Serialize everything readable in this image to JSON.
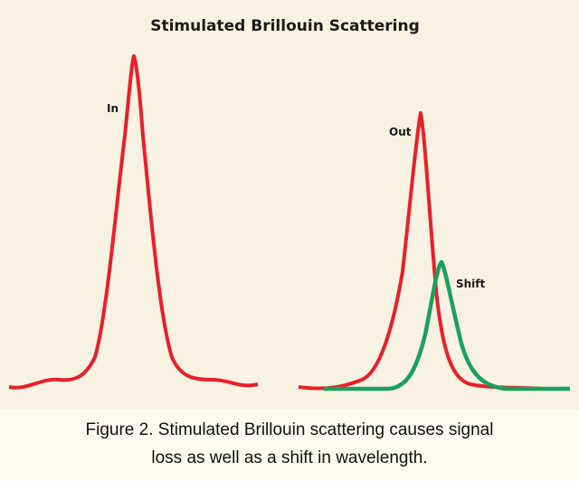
{
  "figure": {
    "title": "Stimulated Brillouin Scattering",
    "labels": {
      "in": "In",
      "out": "Out",
      "shift": "Shift"
    },
    "caption": [
      "Figure 2. Stimulated Brillouin scattering causes signal",
      "loss as well as a shift in wavelength."
    ]
  }
}
